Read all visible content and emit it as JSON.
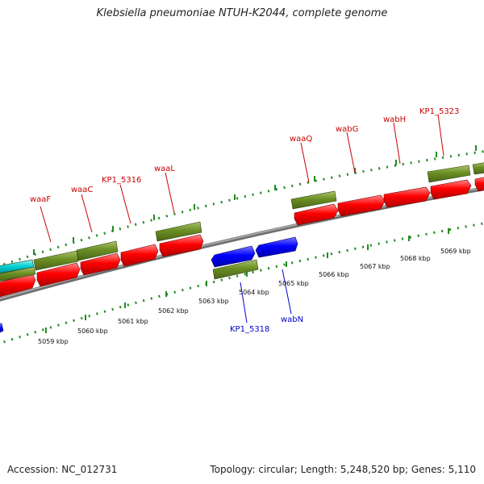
{
  "title": "Klebsiella pneumoniae NTUH-K2044, complete genome",
  "footer": {
    "accession": "Accession: NC_012731",
    "summary": "Topology: circular; Length: 5,248,520 bp; Genes: 5,110"
  },
  "ticks": [
    "5059 kbp",
    "5060 kbp",
    "5061 kbp",
    "5062 kbp",
    "5063 kbp",
    "5064 kbp",
    "5065 kbp",
    "5066 kbp",
    "5067 kbp",
    "5068 kbp",
    "5069 kbp"
  ],
  "forward_genes": [
    "waaF",
    "waaC",
    "KP1_5316",
    "waaL",
    "waaQ",
    "wabG",
    "wabH",
    "KP1_5323"
  ],
  "reverse_genes": [
    "KP1_5318",
    "wabN"
  ],
  "colors": {
    "cds": "#ff0000",
    "gene": "#6b8e23",
    "reverse_cds": "#0000ff",
    "trna": "#00ced1",
    "backbone": "#8c8c8c",
    "ticks": "#228b22",
    "forward_label": "#cc0000",
    "reverse_label": "#0000cc"
  }
}
